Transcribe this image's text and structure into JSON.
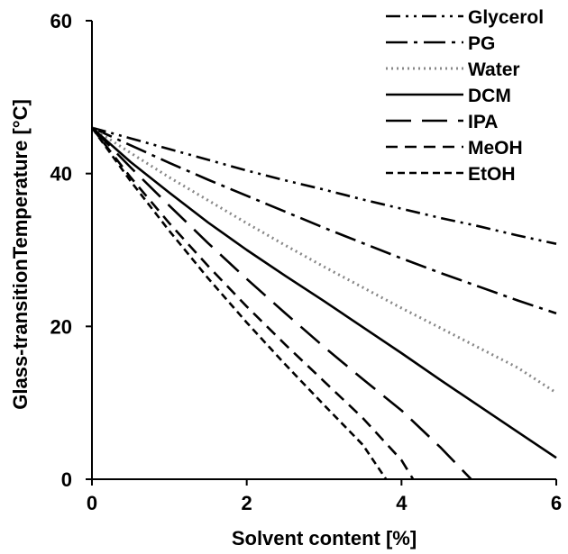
{
  "chart_data": {
    "type": "line",
    "title": "",
    "xlabel": "Solvent content [%]",
    "ylabel": "Glass-transitionTemperature [°C]",
    "xlim": [
      0,
      6
    ],
    "ylim": [
      0,
      60
    ],
    "xticks": [
      "0",
      "2",
      "4",
      "6"
    ],
    "yticks": [
      "0",
      "20",
      "40",
      "60"
    ],
    "grid": false,
    "legend_position": "top-right",
    "series": [
      {
        "name": "Glycerol",
        "color": "#000000",
        "dash": "dash-dot-dot",
        "x": [
          0,
          0.5,
          1,
          1.5,
          2,
          2.5,
          3,
          3.5,
          4,
          4.5,
          5,
          5.5,
          6
        ],
        "y": [
          46,
          44.6,
          43.2,
          41.8,
          40.4,
          39.1,
          37.9,
          36.6,
          35.4,
          34.2,
          33.1,
          31.9,
          30.8
        ]
      },
      {
        "name": "PG",
        "color": "#000000",
        "dash": "dash-dot",
        "x": [
          0,
          0.5,
          1,
          1.5,
          2,
          2.5,
          3,
          3.5,
          4,
          4.5,
          5,
          5.5,
          6
        ],
        "y": [
          46,
          43.7,
          41.4,
          39.2,
          37.1,
          35,
          32.9,
          30.9,
          28.9,
          27,
          25.2,
          23.4,
          21.7
        ]
      },
      {
        "name": "Water",
        "color": "#888888",
        "dash": "dotted",
        "x": [
          0,
          0.5,
          1,
          1.5,
          2,
          2.5,
          3,
          3.5,
          4,
          4.5,
          5,
          5.5,
          6
        ],
        "y": [
          46,
          42.7,
          39.5,
          36.5,
          33.5,
          30.6,
          27.8,
          25.1,
          22.4,
          19.8,
          17.2,
          14.6,
          11.3
        ]
      },
      {
        "name": "DCM",
        "color": "#000000",
        "dash": "solid",
        "x": [
          0,
          0.5,
          1,
          1.5,
          2,
          2.5,
          3,
          3.5,
          4,
          4.5,
          5,
          5.5,
          6
        ],
        "y": [
          46,
          41.5,
          37.5,
          33.6,
          30,
          26.6,
          23.3,
          19.9,
          16.5,
          13,
          9.6,
          6.2,
          2.8
        ]
      },
      {
        "name": "IPA",
        "color": "#000000",
        "dash": "long-dash",
        "x": [
          0,
          0.5,
          1,
          1.5,
          2,
          2.5,
          3,
          3.5,
          4,
          4.5,
          4.9
        ],
        "y": [
          46,
          40.8,
          35.8,
          30.9,
          26.2,
          21.7,
          17.3,
          13.1,
          9,
          4.2,
          0
        ]
      },
      {
        "name": "MeOH",
        "color": "#000000",
        "dash": "dash",
        "x": [
          0,
          0.5,
          1,
          1.5,
          2,
          2.5,
          3,
          3.5,
          4,
          4.15
        ],
        "y": [
          46,
          39.5,
          33.5,
          27.9,
          22.6,
          17.6,
          12.8,
          8,
          2.5,
          0
        ]
      },
      {
        "name": "EtOH",
        "color": "#000000",
        "dash": "short-dash",
        "x": [
          0,
          0.5,
          1,
          1.5,
          2,
          2.5,
          3,
          3.5,
          3.8
        ],
        "y": [
          46,
          39,
          32.5,
          26.3,
          20.5,
          15,
          9.7,
          4.5,
          0
        ]
      }
    ]
  }
}
